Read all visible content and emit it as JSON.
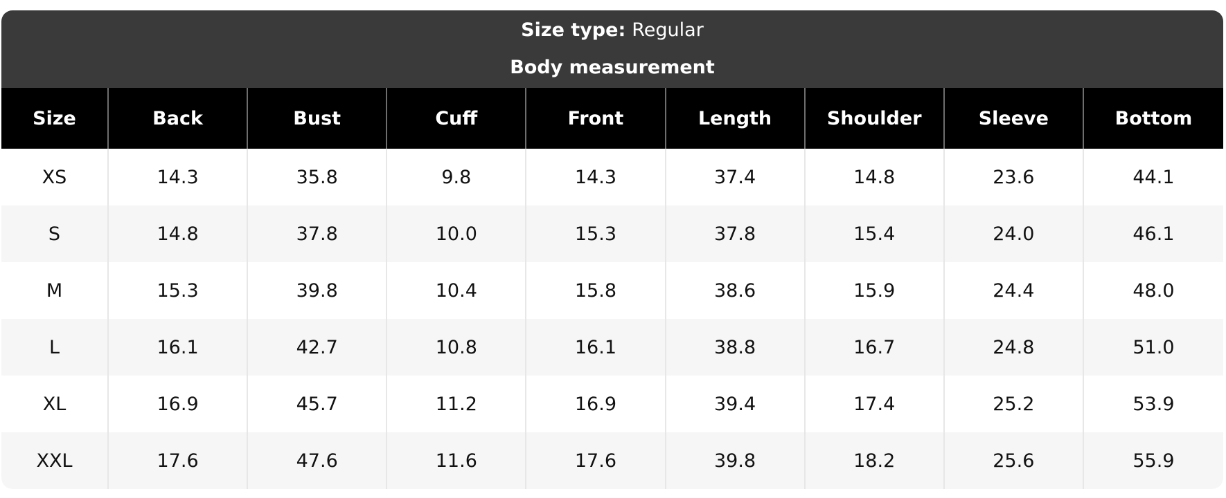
{
  "header": {
    "size_type_label": "Size type:",
    "size_type_value": "Regular",
    "subtitle": "Body measurement"
  },
  "table": {
    "columns": [
      "Size",
      "Back",
      "Bust",
      "Cuff",
      "Front",
      "Length",
      "Shoulder",
      "Sleeve",
      "Bottom"
    ],
    "rows": [
      {
        "size": "XS",
        "values": [
          "14.3",
          "35.8",
          "9.8",
          "14.3",
          "37.4",
          "14.8",
          "23.6",
          "44.1"
        ]
      },
      {
        "size": "S",
        "values": [
          "14.8",
          "37.8",
          "10.0",
          "15.3",
          "37.8",
          "15.4",
          "24.0",
          "46.1"
        ]
      },
      {
        "size": "M",
        "values": [
          "15.3",
          "39.8",
          "10.4",
          "15.8",
          "38.6",
          "15.9",
          "24.4",
          "48.0"
        ]
      },
      {
        "size": "L",
        "values": [
          "16.1",
          "42.7",
          "10.8",
          "16.1",
          "38.8",
          "16.7",
          "24.8",
          "51.0"
        ]
      },
      {
        "size": "XL",
        "values": [
          "16.9",
          "45.7",
          "11.2",
          "16.9",
          "39.4",
          "17.4",
          "25.2",
          "53.9"
        ]
      },
      {
        "size": "XXL",
        "values": [
          "17.6",
          "47.6",
          "11.6",
          "17.6",
          "39.8",
          "18.2",
          "25.6",
          "55.9"
        ]
      }
    ]
  },
  "colors": {
    "band_background": "#3a3a3a",
    "band_text": "#ffffff",
    "header_background": "#000000",
    "header_text": "#ffffff",
    "header_divider": "#6e6e6e",
    "row_odd_background": "#ffffff",
    "row_even_background": "#f6f6f6",
    "cell_divider": "#e7e7e7",
    "cell_text": "#111111",
    "page_background": "#ffffff"
  }
}
